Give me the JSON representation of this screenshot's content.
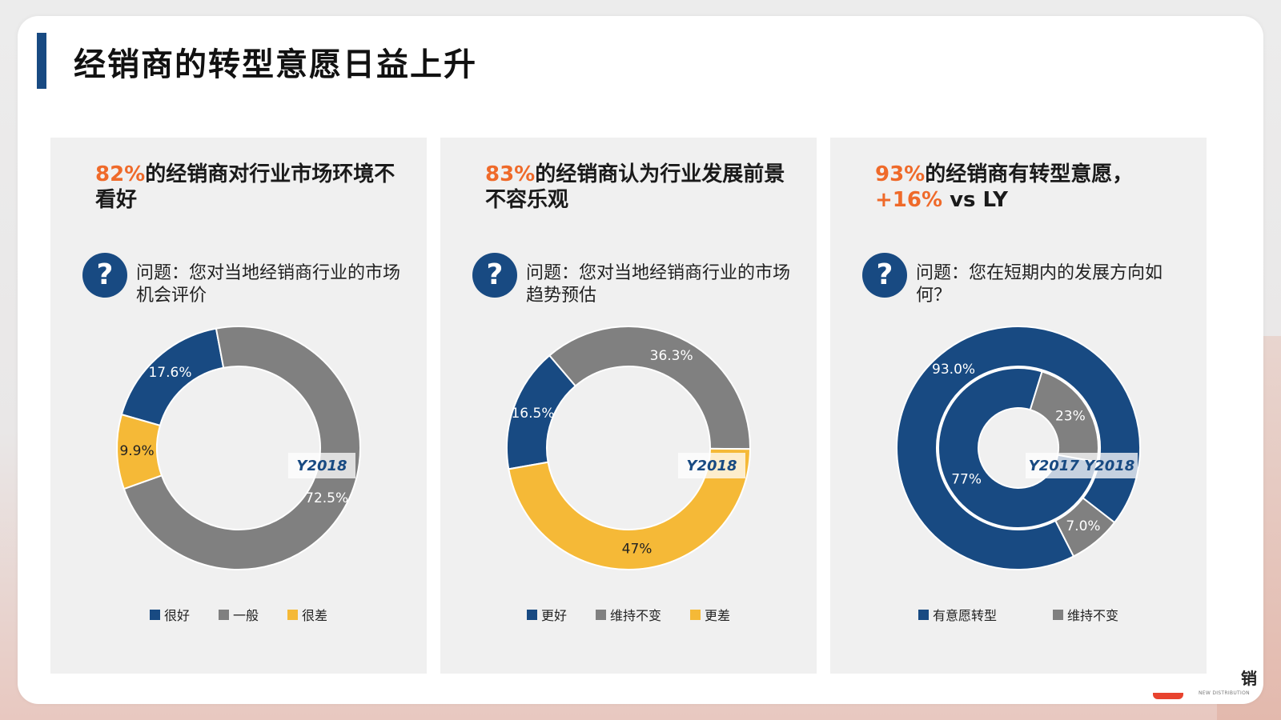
{
  "page": {
    "title": "经销商的转型意愿日益上升"
  },
  "brand": {
    "text": "销",
    "subtext": "NEW DISTRIBUTION"
  },
  "panels": [
    {
      "headline_highlight": "82%",
      "headline_text": "的经销商对行业市场环境不看好",
      "headline_text2": "",
      "question_icon": "question-icon",
      "question": "问题：您对当地经销商行业的市场机会评价",
      "year_label": "Y2018",
      "legend": [
        "很好",
        "一般",
        "很差"
      ]
    },
    {
      "headline_highlight": "83%",
      "headline_text": "的经销商认为行业发展前景不容乐观",
      "headline_text2": "",
      "question_icon": "question-icon",
      "question": "问题：您对当地经销商行业的市场趋势预估",
      "year_label": "Y2018",
      "legend": [
        "更好",
        "维持不变",
        "更差"
      ]
    },
    {
      "headline_highlight": "93%",
      "headline_text": "的经销商有转型意愿，",
      "headline_highlight2": "+16%",
      "headline_text2": " vs LY",
      "question_icon": "question-icon",
      "question": "问题：您在短期内的发展方向如何？",
      "year_label": "Y2017  Y2018",
      "legend": [
        "有意愿转型",
        "维持不变"
      ]
    }
  ],
  "colors": {
    "blue": "#184a82",
    "gray": "#808080",
    "yellow": "#f5b937",
    "accent": "#ef6a2a"
  },
  "chart_data": [
    {
      "type": "pie",
      "title": "Y2018",
      "categories": [
        "很好",
        "一般",
        "很差"
      ],
      "values": [
        17.6,
        72.5,
        9.9
      ],
      "labels": [
        "17.6%",
        "72.5%",
        "9.9%"
      ]
    },
    {
      "type": "pie",
      "title": "Y2018",
      "categories": [
        "更好",
        "维持不变",
        "更差"
      ],
      "values": [
        16.5,
        36.3,
        47.0
      ],
      "labels": [
        "16.5%",
        "36.3%",
        "47%"
      ]
    },
    {
      "type": "pie",
      "title": "Y2017 Y2018",
      "categories": [
        "有意愿转型",
        "维持不变"
      ],
      "series": [
        {
          "name": "Y2017",
          "values": [
            77,
            23
          ],
          "labels": [
            "77%",
            "23%"
          ]
        },
        {
          "name": "Y2018",
          "values": [
            93.0,
            7.0
          ],
          "labels": [
            "93.0%",
            "7.0%"
          ]
        }
      ]
    }
  ]
}
